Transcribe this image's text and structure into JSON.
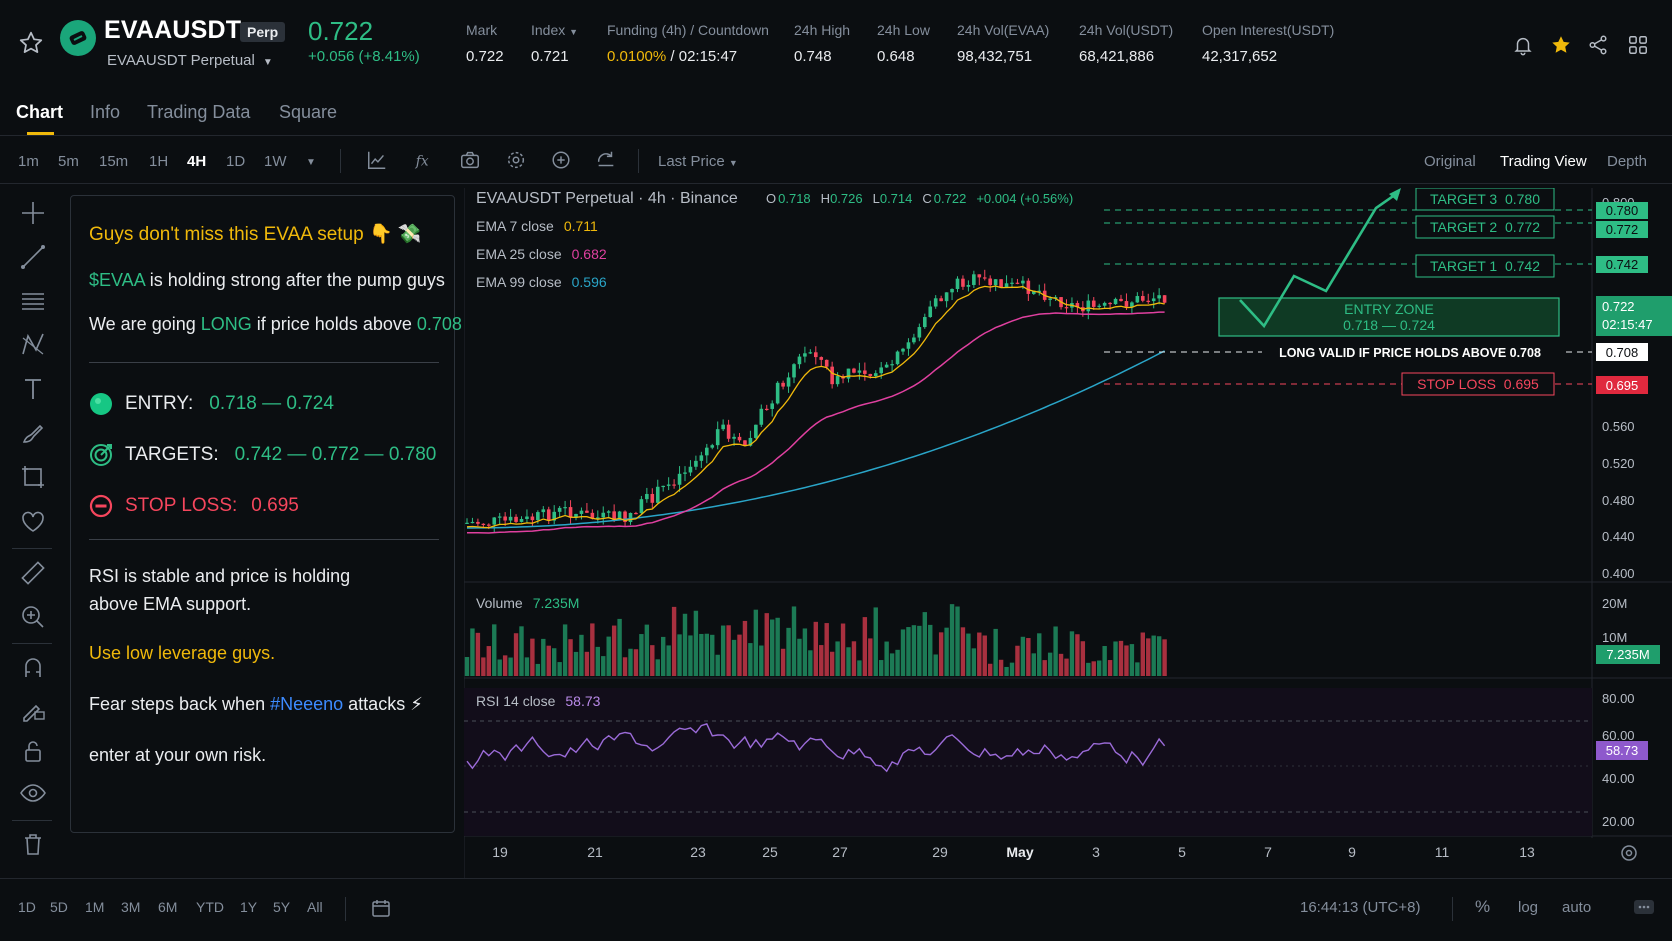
{
  "header": {
    "symbol": "EVAAUSDT",
    "badge": "Perp",
    "subtitle": "EVAAUSDT Perpetual",
    "last_price": "0.722",
    "change": "+0.056 (+8.41%)",
    "stats": [
      {
        "label": "Mark",
        "value": "0.722"
      },
      {
        "label": "Index",
        "value": "0.721"
      },
      {
        "label": "Funding (4h) / Countdown",
        "value_rate": "0.0100%",
        "value_sep": " / ",
        "value_time": "02:15:47"
      },
      {
        "label": "24h High",
        "value": "0.748"
      },
      {
        "label": "24h Low",
        "value": "0.648"
      },
      {
        "label": "24h Vol(EVAA)",
        "value": "98,432,751"
      },
      {
        "label": "24h Vol(USDT)",
        "value": "68,421,886"
      },
      {
        "label": "Open Interest(USDT)",
        "value": "42,317,652"
      }
    ],
    "icons": [
      "star-outline-icon",
      "bell-icon",
      "star-filled-icon",
      "share-icon",
      "grid-icon"
    ]
  },
  "tabs": [
    "Chart",
    "Info",
    "Trading Data",
    "Square"
  ],
  "toolbar": {
    "timeframes": [
      "1m",
      "5m",
      "15m",
      "1H",
      "4H",
      "1D",
      "1W"
    ],
    "active_timeframe": "4H",
    "price_source": "Last Price",
    "views": [
      "Original",
      "Trading View",
      "Depth"
    ],
    "active_view": "Trading View",
    "icons": [
      "indicators-icon",
      "fx-icon",
      "camera-icon",
      "settings-icon",
      "alert-icon",
      "replay-icon"
    ]
  },
  "post": {
    "headline": "Guys don't miss this EVAA setup 👇 💸",
    "line1_tag": "$EVAA",
    "line1_rest": " is holding strong after the pump guys",
    "line2_a": "We are going ",
    "line2_long": "LONG",
    "line2_b": " if price holds above ",
    "line2_price": "0.708",
    "entry_label": "ENTRY:",
    "entry_value": "0.718 — 0.724",
    "targets_label": "TARGETS:",
    "targets_value": "0.742 — 0.772 — 0.780",
    "stop_label": "STOP LOSS:",
    "stop_value": "0.695",
    "rsi_line1": "RSI is stable and price is holding",
    "rsi_line2": "above EMA support.",
    "leverage": "Use low leverage guys.",
    "fear_a": "Fear steps back when ",
    "fear_tag": "#Neeeno",
    "fear_b": " attacks ⚡",
    "risk": "enter at your own risk."
  },
  "chart_data": {
    "type": "candlestick",
    "title": "EVAAUSDT Perpetual · 4h · Binance",
    "ohlc": {
      "O": "0.718",
      "H": "0.726",
      "L": "0.714",
      "C": "0.722",
      "change": "+0.004 (+0.56%)"
    },
    "indicators": [
      {
        "name": "EMA 7 close",
        "value": "0.711",
        "color": "#f0b90b"
      },
      {
        "name": "EMA 25 close",
        "value": "0.682",
        "color": "#e040a0"
      },
      {
        "name": "EMA 99 close",
        "value": "0.596",
        "color": "#2aa5c8"
      }
    ],
    "price_axis": [
      "0.800",
      "0.680",
      "0.560",
      "0.520",
      "0.480",
      "0.440",
      "0.400"
    ],
    "ylim": [
      0.4,
      0.8
    ],
    "current_price_label": "0.722",
    "countdown_label": "02:15:47",
    "levels": [
      {
        "name": "TARGET 3",
        "price": 0.78,
        "label": "TARGET 3  0.780",
        "tag": "0.780",
        "color": "#2ebd85"
      },
      {
        "name": "TARGET 2",
        "price": 0.772,
        "label": "TARGET 2  0.772",
        "tag": "0.772",
        "color": "#2ebd85"
      },
      {
        "name": "TARGET 1",
        "price": 0.742,
        "label": "TARGET 1  0.742",
        "tag": "0.742",
        "color": "#2ebd85"
      },
      {
        "name": "LONG VALID",
        "price": 0.708,
        "label": "LONG VALID IF PRICE HOLDS ABOVE 0.708",
        "tag": "0.708",
        "color": "#eaecef"
      },
      {
        "name": "STOP LOSS",
        "price": 0.695,
        "label": "STOP LOSS  0.695",
        "tag": "0.695",
        "color": "#f6465d"
      }
    ],
    "entry_zone": {
      "title": "ENTRY ZONE",
      "range": "0.718 — 0.724",
      "low": 0.718,
      "high": 0.724
    },
    "volume": {
      "label": "Volume",
      "value": "7.235M",
      "axis": [
        "20M",
        "10M"
      ],
      "tag": "7.235M"
    },
    "rsi": {
      "label": "RSI 14 close",
      "value": "58.73",
      "axis": [
        "80.00",
        "60.00",
        "40.00",
        "20.00"
      ],
      "tag": "58.73"
    },
    "x_labels": [
      "19",
      "21",
      "23",
      "25",
      "27",
      "29",
      "May",
      "3",
      "5",
      "7",
      "9",
      "11",
      "13"
    ]
  },
  "bottom": {
    "ranges": [
      "1D",
      "5D",
      "1M",
      "3M",
      "6M",
      "YTD",
      "1Y",
      "5Y",
      "All"
    ],
    "clock": "16:44:13 (UTC+8)",
    "percent": "%",
    "log": "log",
    "auto": "auto"
  },
  "colors": {
    "up": "#2ebd85",
    "down": "#f6465d",
    "accent": "#f0b90b",
    "bg": "#0b0e11"
  }
}
